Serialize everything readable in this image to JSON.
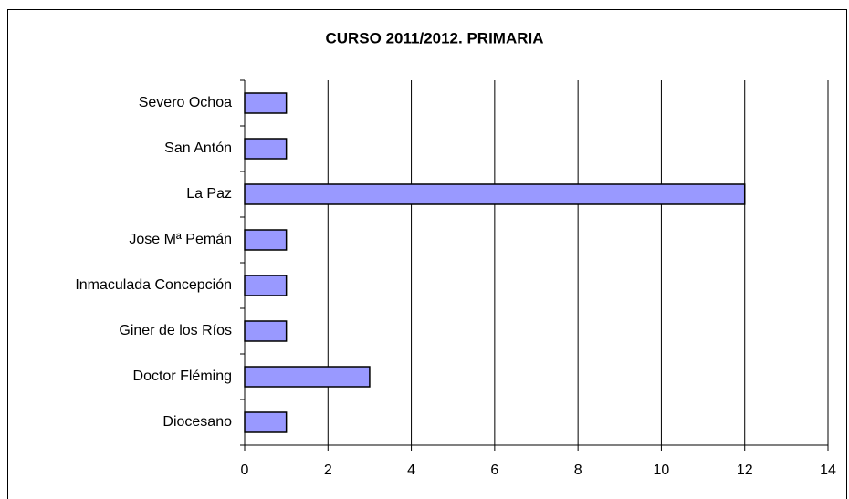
{
  "chart_data": {
    "type": "bar",
    "orientation": "horizontal",
    "title": "CURSO 2011/2012. PRIMARIA",
    "categories": [
      "Severo Ochoa",
      "San Antón",
      "La Paz",
      "Jose Mª Pemán",
      "Inmaculada Concepción",
      "Giner de los Ríos",
      "Doctor Fléming",
      "Diocesano"
    ],
    "values": [
      1,
      1,
      12,
      1,
      1,
      1,
      3,
      1
    ],
    "color": "#9999ff",
    "xlim": [
      0,
      14
    ],
    "xticks": [
      0,
      2,
      4,
      6,
      8,
      10,
      12,
      14
    ],
    "grid": true
  }
}
